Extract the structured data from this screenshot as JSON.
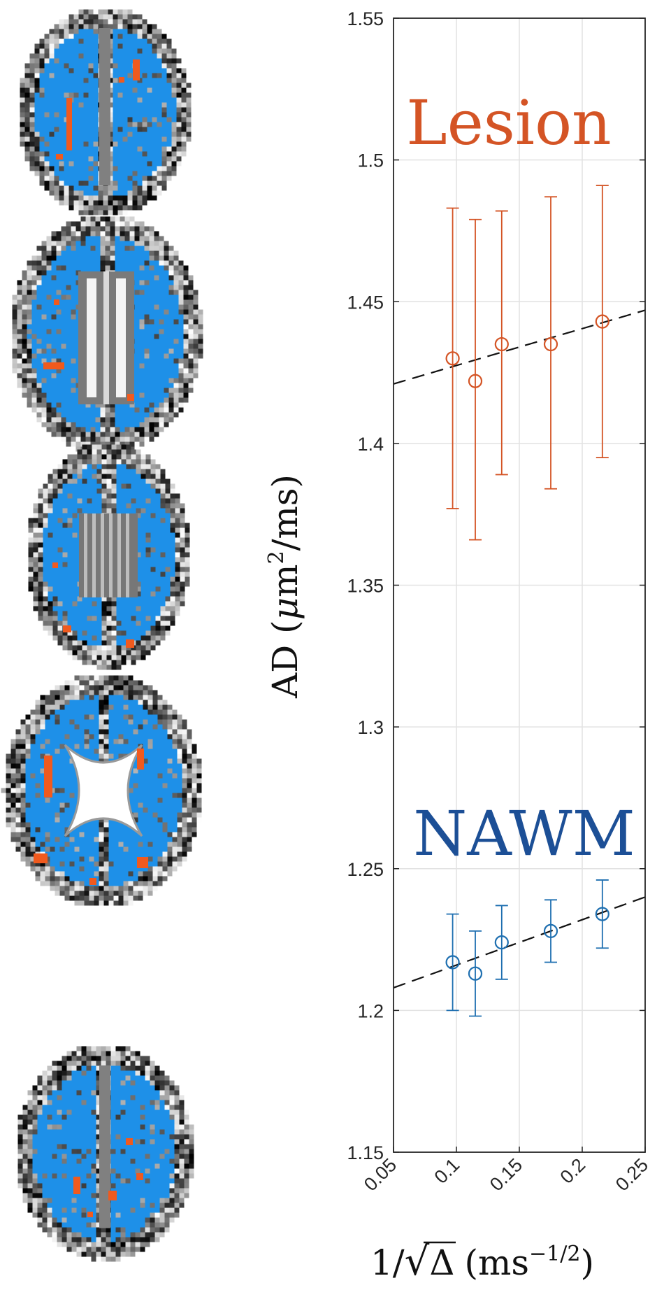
{
  "brain_panels": {
    "colors": {
      "mask": "#1e90e8",
      "lesion": "#f05a1e",
      "background_gray": "#808080"
    },
    "slices": [
      {
        "name": "slice-1"
      },
      {
        "name": "slice-2"
      },
      {
        "name": "slice-3"
      },
      {
        "name": "slice-4"
      },
      {
        "name": "slice-5"
      }
    ]
  },
  "chart_data": {
    "type": "scatter",
    "xlabel": "1/√Δ (ms^-1/2)",
    "xlabel_parts": {
      "prefix": "1/",
      "root": "√",
      "delta": "Δ",
      "unit_open": "(ms",
      "unit_exp": "−1/2",
      "unit_close": ")"
    },
    "ylabel": "AD (μm²/ms)",
    "ylabel_parts": {
      "main": "AD (",
      "mu": "μ",
      "unit": "m",
      "exp": "2",
      "rest": "/ms)"
    },
    "xlim": [
      0.05,
      0.25
    ],
    "ylim": [
      1.15,
      1.55
    ],
    "xticks": [
      "0.05",
      "0.1",
      "0.15",
      "0.2",
      "0.25"
    ],
    "yticks": [
      "1.15",
      "1.2",
      "1.25",
      "1.3",
      "1.35",
      "1.4",
      "1.45",
      "1.5",
      "1.55"
    ],
    "grid": true,
    "series": [
      {
        "name": "Lesion",
        "color": "#d45425",
        "x": [
          0.097,
          0.115,
          0.136,
          0.175,
          0.216
        ],
        "y": [
          1.43,
          1.422,
          1.435,
          1.435,
          1.443
        ],
        "err_low": [
          1.377,
          1.366,
          1.389,
          1.384,
          1.395
        ],
        "err_high": [
          1.483,
          1.479,
          1.482,
          1.487,
          1.491
        ],
        "fit_line": {
          "x": [
            0.05,
            0.25
          ],
          "y": [
            1.421,
            1.447
          ]
        }
      },
      {
        "name": "NAWM",
        "color": "#1e6fb0",
        "label_color": "#1c4f96",
        "x": [
          0.097,
          0.115,
          0.136,
          0.175,
          0.216
        ],
        "y": [
          1.217,
          1.213,
          1.224,
          1.228,
          1.234
        ],
        "err_low": [
          1.2,
          1.198,
          1.211,
          1.217,
          1.222
        ],
        "err_high": [
          1.234,
          1.228,
          1.237,
          1.239,
          1.246
        ],
        "fit_line": {
          "x": [
            0.05,
            0.25
          ],
          "y": [
            1.208,
            1.24
          ]
        }
      }
    ]
  }
}
